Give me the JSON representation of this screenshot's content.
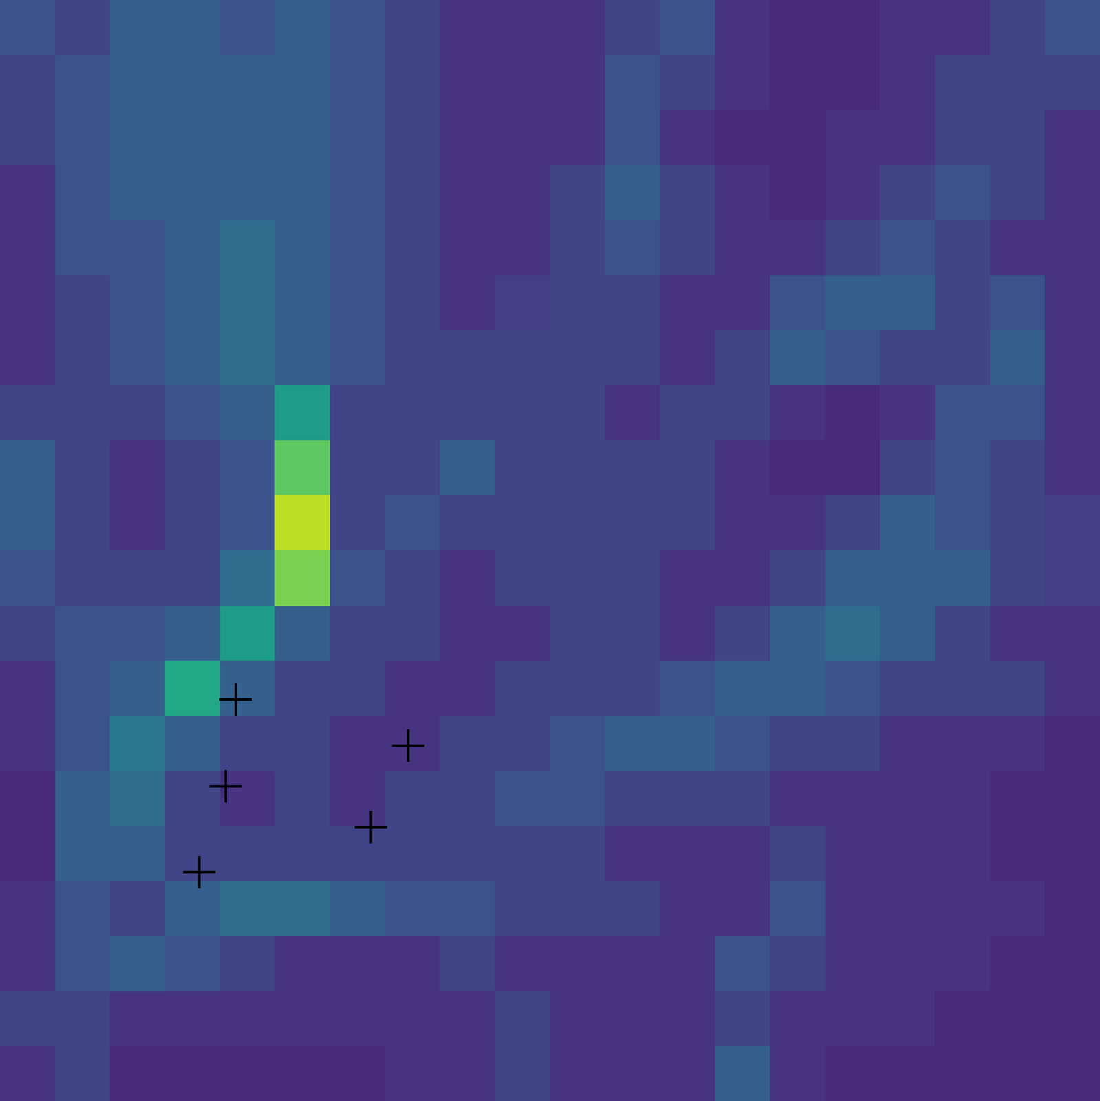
{
  "chart_data": {
    "type": "heatmap",
    "tick_labels": false,
    "xlim": [
      0,
      100
    ],
    "ylim": [
      0,
      100
    ],
    "color": "viridis",
    "zlim": [
      0,
      1
    ],
    "cells": [
      [
        0.25,
        0.2,
        0.3,
        0.3,
        0.25,
        0.3,
        0.25,
        0.2,
        0.15,
        0.15,
        0.15,
        0.2,
        0.25,
        0.15,
        0.12,
        0.12,
        0.15,
        0.15,
        0.2,
        0.25
      ],
      [
        0.2,
        0.25,
        0.3,
        0.3,
        0.3,
        0.3,
        0.25,
        0.2,
        0.15,
        0.15,
        0.15,
        0.25,
        0.2,
        0.15,
        0.12,
        0.12,
        0.15,
        0.2,
        0.2,
        0.2
      ],
      [
        0.2,
        0.25,
        0.3,
        0.3,
        0.3,
        0.3,
        0.25,
        0.2,
        0.15,
        0.15,
        0.15,
        0.25,
        0.15,
        0.12,
        0.12,
        0.15,
        0.15,
        0.2,
        0.2,
        0.15
      ],
      [
        0.15,
        0.25,
        0.3,
        0.3,
        0.3,
        0.3,
        0.25,
        0.2,
        0.15,
        0.15,
        0.2,
        0.3,
        0.2,
        0.15,
        0.12,
        0.15,
        0.2,
        0.25,
        0.2,
        0.15
      ],
      [
        0.15,
        0.25,
        0.25,
        0.3,
        0.35,
        0.3,
        0.25,
        0.2,
        0.15,
        0.15,
        0.2,
        0.25,
        0.2,
        0.15,
        0.15,
        0.2,
        0.25,
        0.2,
        0.15,
        0.15
      ],
      [
        0.15,
        0.2,
        0.25,
        0.3,
        0.35,
        0.3,
        0.25,
        0.2,
        0.15,
        0.18,
        0.2,
        0.2,
        0.15,
        0.15,
        0.25,
        0.3,
        0.3,
        0.2,
        0.25,
        0.15
      ],
      [
        0.15,
        0.2,
        0.25,
        0.3,
        0.35,
        0.3,
        0.25,
        0.2,
        0.2,
        0.2,
        0.2,
        0.2,
        0.15,
        0.2,
        0.3,
        0.25,
        0.2,
        0.2,
        0.3,
        0.15
      ],
      [
        0.2,
        0.2,
        0.2,
        0.25,
        0.3,
        0.55,
        0.2,
        0.2,
        0.2,
        0.2,
        0.2,
        0.15,
        0.2,
        0.2,
        0.15,
        0.12,
        0.15,
        0.25,
        0.25,
        0.15
      ],
      [
        0.3,
        0.2,
        0.15,
        0.2,
        0.25,
        0.75,
        0.2,
        0.2,
        0.3,
        0.2,
        0.2,
        0.2,
        0.2,
        0.15,
        0.12,
        0.12,
        0.2,
        0.25,
        0.2,
        0.15
      ],
      [
        0.3,
        0.2,
        0.15,
        0.2,
        0.25,
        0.9,
        0.2,
        0.25,
        0.2,
        0.2,
        0.2,
        0.2,
        0.2,
        0.15,
        0.15,
        0.2,
        0.3,
        0.25,
        0.2,
        0.18
      ],
      [
        0.25,
        0.2,
        0.2,
        0.2,
        0.35,
        0.8,
        0.25,
        0.2,
        0.15,
        0.2,
        0.2,
        0.2,
        0.15,
        0.15,
        0.2,
        0.3,
        0.3,
        0.3,
        0.2,
        0.18
      ],
      [
        0.2,
        0.25,
        0.25,
        0.3,
        0.55,
        0.3,
        0.2,
        0.2,
        0.15,
        0.15,
        0.2,
        0.2,
        0.15,
        0.2,
        0.3,
        0.35,
        0.3,
        0.2,
        0.15,
        0.15
      ],
      [
        0.15,
        0.25,
        0.3,
        0.6,
        0.3,
        0.2,
        0.2,
        0.15,
        0.15,
        0.2,
        0.2,
        0.2,
        0.25,
        0.3,
        0.3,
        0.25,
        0.2,
        0.2,
        0.2,
        0.15
      ],
      [
        0.15,
        0.25,
        0.4,
        0.3,
        0.2,
        0.2,
        0.15,
        0.15,
        0.2,
        0.2,
        0.25,
        0.3,
        0.3,
        0.25,
        0.2,
        0.2,
        0.15,
        0.15,
        0.15,
        0.12
      ],
      [
        0.12,
        0.3,
        0.35,
        0.2,
        0.15,
        0.2,
        0.15,
        0.2,
        0.2,
        0.25,
        0.25,
        0.2,
        0.2,
        0.2,
        0.15,
        0.15,
        0.15,
        0.15,
        0.12,
        0.12
      ],
      [
        0.12,
        0.3,
        0.3,
        0.2,
        0.2,
        0.2,
        0.2,
        0.2,
        0.2,
        0.2,
        0.2,
        0.15,
        0.15,
        0.15,
        0.2,
        0.15,
        0.15,
        0.15,
        0.12,
        0.12
      ],
      [
        0.15,
        0.25,
        0.2,
        0.3,
        0.35,
        0.35,
        0.3,
        0.25,
        0.25,
        0.2,
        0.2,
        0.2,
        0.15,
        0.15,
        0.25,
        0.15,
        0.15,
        0.15,
        0.15,
        0.12
      ],
      [
        0.15,
        0.25,
        0.3,
        0.25,
        0.2,
        0.15,
        0.15,
        0.15,
        0.2,
        0.15,
        0.15,
        0.15,
        0.15,
        0.25,
        0.2,
        0.15,
        0.15,
        0.15,
        0.12,
        0.12
      ],
      [
        0.2,
        0.2,
        0.15,
        0.15,
        0.15,
        0.15,
        0.15,
        0.15,
        0.15,
        0.2,
        0.15,
        0.15,
        0.15,
        0.2,
        0.15,
        0.15,
        0.15,
        0.12,
        0.12,
        0.12
      ],
      [
        0.15,
        0.2,
        0.12,
        0.12,
        0.12,
        0.12,
        0.12,
        0.15,
        0.15,
        0.2,
        0.15,
        0.15,
        0.15,
        0.3,
        0.15,
        0.12,
        0.12,
        0.12,
        0.12,
        0.12
      ]
    ],
    "markers": {
      "marker": "plus",
      "color": "#000000",
      "x": [
        21.4,
        37.1,
        20.5,
        33.7,
        18.1
      ],
      "y": [
        36.5,
        32.3,
        28.6,
        24.9,
        20.8
      ]
    }
  }
}
